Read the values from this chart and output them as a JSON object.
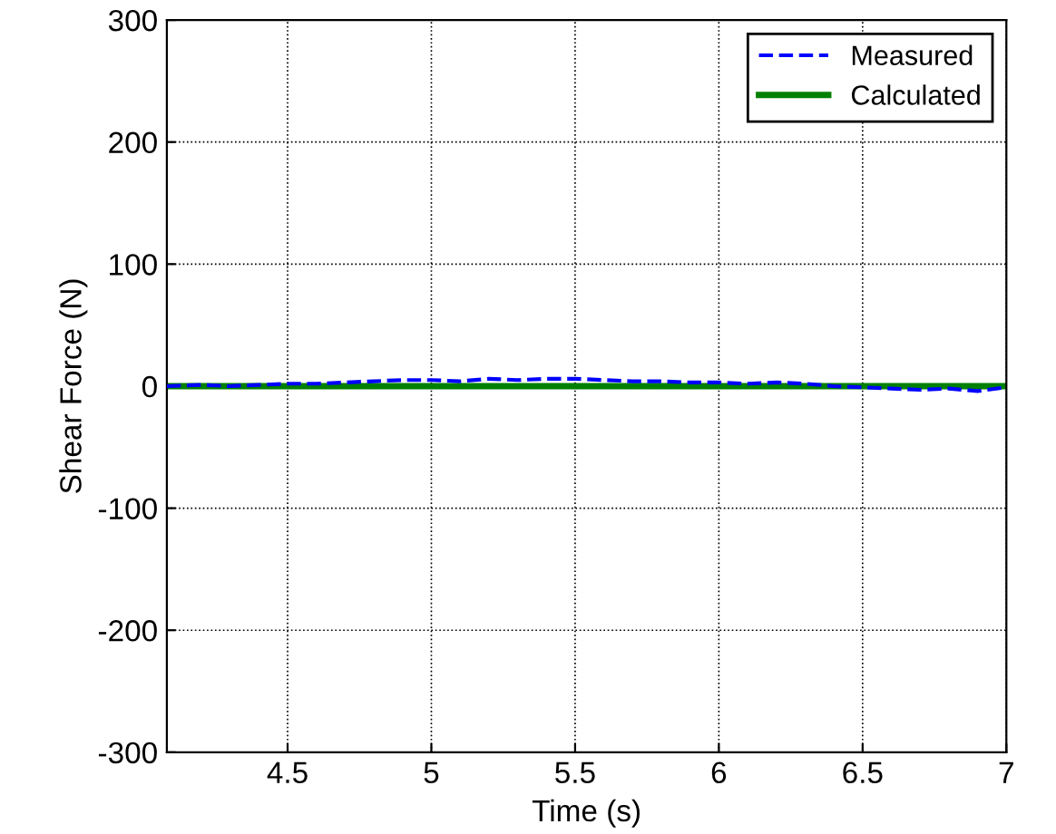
{
  "chart_data": {
    "type": "line",
    "xlabel": "Time (s)",
    "ylabel": "Shear Force (N)",
    "xlim": [
      4.08,
      7.0
    ],
    "ylim": [
      -300,
      300
    ],
    "xticks": [
      4.5,
      5,
      5.5,
      6,
      6.5,
      7
    ],
    "yticks": [
      -300,
      -200,
      -100,
      0,
      100,
      200,
      300
    ],
    "grid": true,
    "legend": "top right",
    "series": [
      {
        "name": "Measured",
        "color": "#0000ff",
        "line_style": "dashed",
        "x": [
          4.08,
          4.2,
          4.3,
          4.4,
          4.5,
          4.6,
          4.7,
          4.8,
          4.9,
          5.0,
          5.1,
          5.2,
          5.3,
          5.4,
          5.5,
          5.6,
          5.7,
          5.8,
          5.9,
          6.0,
          6.1,
          6.2,
          6.3,
          6.4,
          6.5,
          6.6,
          6.7,
          6.8,
          6.9,
          7.0
        ],
        "values": [
          0,
          1,
          0,
          1,
          2,
          2,
          3,
          4,
          5,
          5,
          4,
          6,
          5,
          6,
          6,
          5,
          4,
          4,
          3,
          3,
          2,
          3,
          2,
          0,
          -1,
          -2,
          -3,
          -2,
          -4,
          -1
        ]
      },
      {
        "name": "Calculated",
        "color": "#008000",
        "line_style": "solid",
        "x": [
          4.08,
          4.5,
          5.0,
          5.5,
          6.0,
          6.5,
          7.0
        ],
        "values": [
          0,
          0,
          0,
          0,
          0,
          0,
          0
        ]
      }
    ]
  }
}
